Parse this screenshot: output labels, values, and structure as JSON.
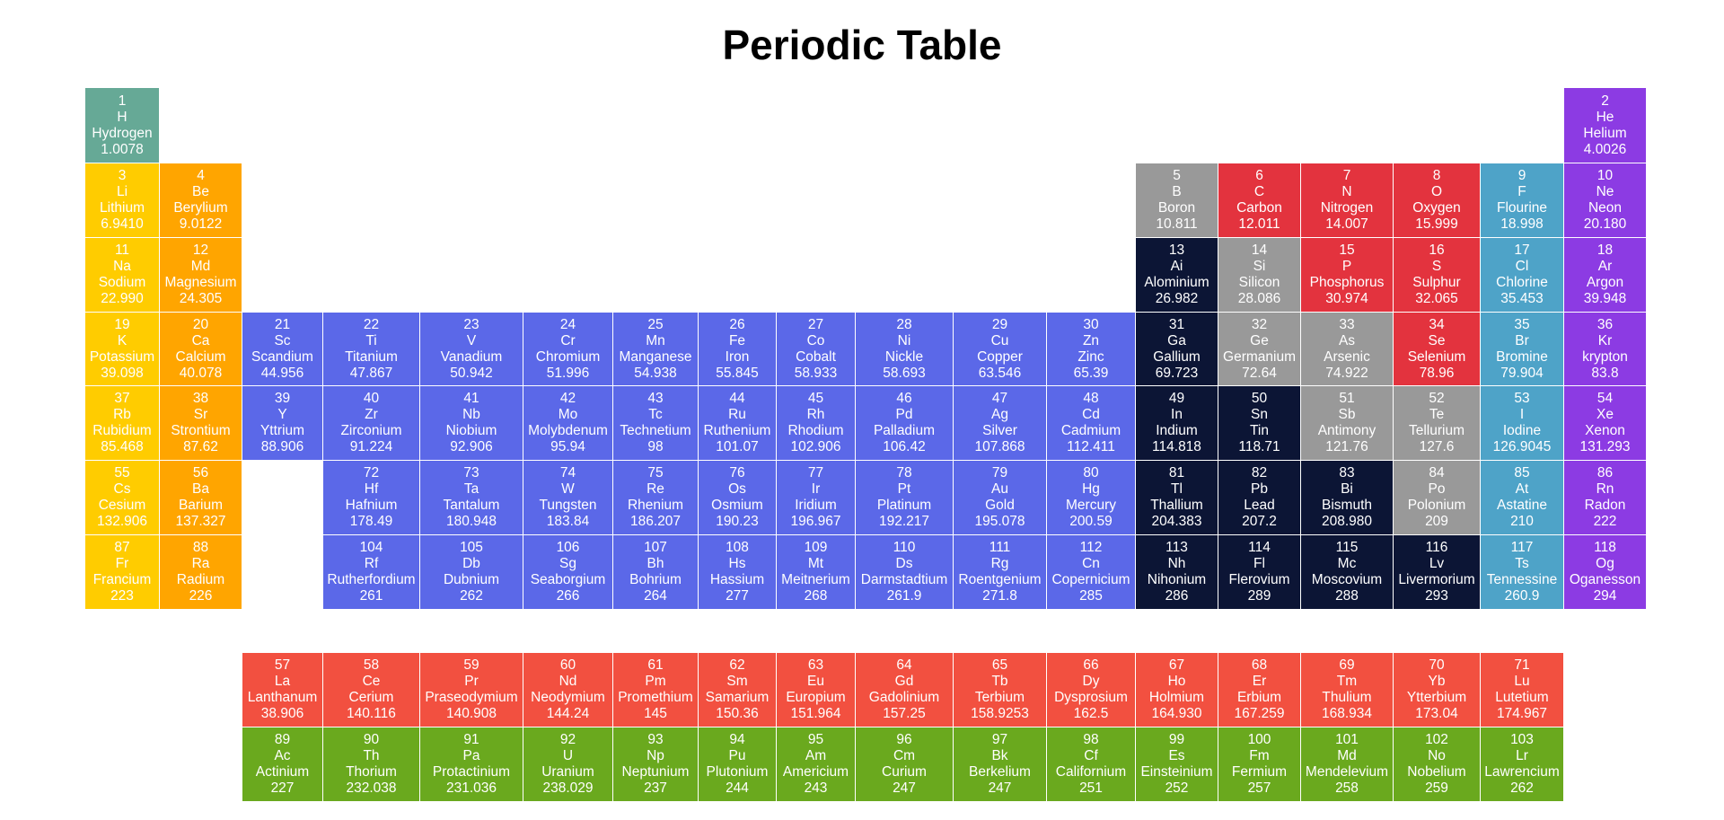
{
  "title": "Periodic Table",
  "colors": {
    "hydrogen": "#66a996",
    "alkali": "#ffcc00",
    "alkaline": "#ffa500",
    "transition": "#5b68e8",
    "metalloid": "#999999",
    "nonmetal": "#e3333e",
    "halogen": "#4ea3c8",
    "noble": "#8c3be3",
    "post": "#0c1535",
    "lanthanide": "#f25040",
    "actinide": "#6aa91e"
  },
  "elements": [
    {
      "n": "1",
      "s": "H",
      "name": "Hydrogen",
      "m": "1.0078",
      "c": "hydrogen",
      "r": 1,
      "col": 1
    },
    {
      "n": "2",
      "s": "He",
      "name": "Helium",
      "m": "4.0026",
      "c": "noble",
      "r": 1,
      "col": 18
    },
    {
      "n": "3",
      "s": "Li",
      "name": "Lithium",
      "m": "6.9410",
      "c": "alkali",
      "r": 2,
      "col": 1
    },
    {
      "n": "4",
      "s": "Be",
      "name": "Berylium",
      "m": "9.0122",
      "c": "alkaline",
      "r": 2,
      "col": 2
    },
    {
      "n": "5",
      "s": "B",
      "name": "Boron",
      "m": "10.811",
      "c": "metalloid",
      "r": 2,
      "col": 13
    },
    {
      "n": "6",
      "s": "C",
      "name": "Carbon",
      "m": "12.011",
      "c": "nonmetal",
      "r": 2,
      "col": 14
    },
    {
      "n": "7",
      "s": "N",
      "name": "Nitrogen",
      "m": "14.007",
      "c": "nonmetal",
      "r": 2,
      "col": 15
    },
    {
      "n": "8",
      "s": "O",
      "name": "Oxygen",
      "m": "15.999",
      "c": "nonmetal",
      "r": 2,
      "col": 16
    },
    {
      "n": "9",
      "s": "F",
      "name": "Flourine",
      "m": "18.998",
      "c": "halogen",
      "r": 2,
      "col": 17
    },
    {
      "n": "10",
      "s": "Ne",
      "name": "Neon",
      "m": "20.180",
      "c": "noble",
      "r": 2,
      "col": 18
    },
    {
      "n": "11",
      "s": "Na",
      "name": "Sodium",
      "m": "22.990",
      "c": "alkali",
      "r": 3,
      "col": 1
    },
    {
      "n": "12",
      "s": "Md",
      "name": "Magnesium",
      "m": "24.305",
      "c": "alkaline",
      "r": 3,
      "col": 2
    },
    {
      "n": "13",
      "s": "Ai",
      "name": "Alominium",
      "m": "26.982",
      "c": "post",
      "r": 3,
      "col": 13
    },
    {
      "n": "14",
      "s": "Si",
      "name": "Silicon",
      "m": "28.086",
      "c": "metalloid",
      "r": 3,
      "col": 14
    },
    {
      "n": "15",
      "s": "P",
      "name": "Phosphorus",
      "m": "30.974",
      "c": "nonmetal",
      "r": 3,
      "col": 15
    },
    {
      "n": "16",
      "s": "S",
      "name": "Sulphur",
      "m": "32.065",
      "c": "nonmetal",
      "r": 3,
      "col": 16
    },
    {
      "n": "17",
      "s": "Cl",
      "name": "Chlorine",
      "m": "35.453",
      "c": "halogen",
      "r": 3,
      "col": 17
    },
    {
      "n": "18",
      "s": "Ar",
      "name": "Argon",
      "m": "39.948",
      "c": "noble",
      "r": 3,
      "col": 18
    },
    {
      "n": "19",
      "s": "K",
      "name": "Potassium",
      "m": "39.098",
      "c": "alkali",
      "r": 4,
      "col": 1
    },
    {
      "n": "20",
      "s": "Ca",
      "name": "Calcium",
      "m": "40.078",
      "c": "alkaline",
      "r": 4,
      "col": 2
    },
    {
      "n": "21",
      "s": "Sc",
      "name": "Scandium",
      "m": "44.956",
      "c": "transition",
      "r": 4,
      "col": 3
    },
    {
      "n": "22",
      "s": "Ti",
      "name": "Titanium",
      "m": "47.867",
      "c": "transition",
      "r": 4,
      "col": 4
    },
    {
      "n": "23",
      "s": "V",
      "name": "Vanadium",
      "m": "50.942",
      "c": "transition",
      "r": 4,
      "col": 5
    },
    {
      "n": "24",
      "s": "Cr",
      "name": "Chromium",
      "m": "51.996",
      "c": "transition",
      "r": 4,
      "col": 6
    },
    {
      "n": "25",
      "s": "Mn",
      "name": "Manganese",
      "m": "54.938",
      "c": "transition",
      "r": 4,
      "col": 7
    },
    {
      "n": "26",
      "s": "Fe",
      "name": "Iron",
      "m": "55.845",
      "c": "transition",
      "r": 4,
      "col": 8
    },
    {
      "n": "27",
      "s": "Co",
      "name": "Cobalt",
      "m": "58.933",
      "c": "transition",
      "r": 4,
      "col": 9
    },
    {
      "n": "28",
      "s": "Ni",
      "name": "Nickle",
      "m": "58.693",
      "c": "transition",
      "r": 4,
      "col": 10
    },
    {
      "n": "29",
      "s": "Cu",
      "name": "Copper",
      "m": "63.546",
      "c": "transition",
      "r": 4,
      "col": 11
    },
    {
      "n": "30",
      "s": "Zn",
      "name": "Zinc",
      "m": "65.39",
      "c": "transition",
      "r": 4,
      "col": 12
    },
    {
      "n": "31",
      "s": "Ga",
      "name": "Gallium",
      "m": "69.723",
      "c": "post",
      "r": 4,
      "col": 13
    },
    {
      "n": "32",
      "s": "Ge",
      "name": "Germanium",
      "m": "72.64",
      "c": "metalloid",
      "r": 4,
      "col": 14
    },
    {
      "n": "33",
      "s": "As",
      "name": "Arsenic",
      "m": "74.922",
      "c": "metalloid",
      "r": 4,
      "col": 15
    },
    {
      "n": "34",
      "s": "Se",
      "name": "Selenium",
      "m": "78.96",
      "c": "nonmetal",
      "r": 4,
      "col": 16
    },
    {
      "n": "35",
      "s": "Br",
      "name": "Bromine",
      "m": "79.904",
      "c": "halogen",
      "r": 4,
      "col": 17
    },
    {
      "n": "36",
      "s": "Kr",
      "name": "krypton",
      "m": "83.8",
      "c": "noble",
      "r": 4,
      "col": 18
    },
    {
      "n": "37",
      "s": "Rb",
      "name": "Rubidium",
      "m": "85.468",
      "c": "alkali",
      "r": 5,
      "col": 1
    },
    {
      "n": "38",
      "s": "Sr",
      "name": "Strontium",
      "m": "87.62",
      "c": "alkaline",
      "r": 5,
      "col": 2
    },
    {
      "n": "39",
      "s": "Y",
      "name": "Yttrium",
      "m": "88.906",
      "c": "transition",
      "r": 5,
      "col": 3
    },
    {
      "n": "40",
      "s": "Zr",
      "name": "Zirconium",
      "m": "91.224",
      "c": "transition",
      "r": 5,
      "col": 4
    },
    {
      "n": "41",
      "s": "Nb",
      "name": "Niobium",
      "m": "92.906",
      "c": "transition",
      "r": 5,
      "col": 5
    },
    {
      "n": "42",
      "s": "Mo",
      "name": "Molybdenum",
      "m": "95.94",
      "c": "transition",
      "r": 5,
      "col": 6
    },
    {
      "n": "43",
      "s": "Tc",
      "name": "Technetium",
      "m": "98",
      "c": "transition",
      "r": 5,
      "col": 7
    },
    {
      "n": "44",
      "s": "Ru",
      "name": "Ruthenium",
      "m": "101.07",
      "c": "transition",
      "r": 5,
      "col": 8
    },
    {
      "n": "45",
      "s": "Rh",
      "name": "Rhodium",
      "m": "102.906",
      "c": "transition",
      "r": 5,
      "col": 9
    },
    {
      "n": "46",
      "s": "Pd",
      "name": "Palladium",
      "m": "106.42",
      "c": "transition",
      "r": 5,
      "col": 10
    },
    {
      "n": "47",
      "s": "Ag",
      "name": "Silver",
      "m": "107.868",
      "c": "transition",
      "r": 5,
      "col": 11
    },
    {
      "n": "48",
      "s": "Cd",
      "name": "Cadmium",
      "m": "112.411",
      "c": "transition",
      "r": 5,
      "col": 12
    },
    {
      "n": "49",
      "s": "In",
      "name": "Indium",
      "m": "114.818",
      "c": "post",
      "r": 5,
      "col": 13
    },
    {
      "n": "50",
      "s": "Sn",
      "name": "Tin",
      "m": "118.71",
      "c": "post",
      "r": 5,
      "col": 14
    },
    {
      "n": "51",
      "s": "Sb",
      "name": "Antimony",
      "m": "121.76",
      "c": "metalloid",
      "r": 5,
      "col": 15
    },
    {
      "n": "52",
      "s": "Te",
      "name": "Tellurium",
      "m": "127.6",
      "c": "metalloid",
      "r": 5,
      "col": 16
    },
    {
      "n": "53",
      "s": "I",
      "name": "Iodine",
      "m": "126.9045",
      "c": "halogen",
      "r": 5,
      "col": 17
    },
    {
      "n": "54",
      "s": "Xe",
      "name": "Xenon",
      "m": "131.293",
      "c": "noble",
      "r": 5,
      "col": 18
    },
    {
      "n": "55",
      "s": "Cs",
      "name": "Cesium",
      "m": "132.906",
      "c": "alkali",
      "r": 6,
      "col": 1
    },
    {
      "n": "56",
      "s": "Ba",
      "name": "Barium",
      "m": "137.327",
      "c": "alkaline",
      "r": 6,
      "col": 2
    },
    {
      "n": "72",
      "s": "Hf",
      "name": "Hafnium",
      "m": "178.49",
      "c": "transition",
      "r": 6,
      "col": 4
    },
    {
      "n": "73",
      "s": "Ta",
      "name": "Tantalum",
      "m": "180.948",
      "c": "transition",
      "r": 6,
      "col": 5
    },
    {
      "n": "74",
      "s": "W",
      "name": "Tungsten",
      "m": "183.84",
      "c": "transition",
      "r": 6,
      "col": 6
    },
    {
      "n": "75",
      "s": "Re",
      "name": "Rhenium",
      "m": "186.207",
      "c": "transition",
      "r": 6,
      "col": 7
    },
    {
      "n": "76",
      "s": "Os",
      "name": "Osmium",
      "m": "190.23",
      "c": "transition",
      "r": 6,
      "col": 8
    },
    {
      "n": "77",
      "s": "Ir",
      "name": "Iridium",
      "m": "196.967",
      "c": "transition",
      "r": 6,
      "col": 9
    },
    {
      "n": "78",
      "s": "Pt",
      "name": "Platinum",
      "m": "192.217",
      "c": "transition",
      "r": 6,
      "col": 10
    },
    {
      "n": "79",
      "s": "Au",
      "name": "Gold",
      "m": "195.078",
      "c": "transition",
      "r": 6,
      "col": 11
    },
    {
      "n": "80",
      "s": "Hg",
      "name": "Mercury",
      "m": "200.59",
      "c": "transition",
      "r": 6,
      "col": 12
    },
    {
      "n": "81",
      "s": "Tl",
      "name": "Thallium",
      "m": "204.383",
      "c": "post",
      "r": 6,
      "col": 13
    },
    {
      "n": "82",
      "s": "Pb",
      "name": "Lead",
      "m": "207.2",
      "c": "post",
      "r": 6,
      "col": 14
    },
    {
      "n": "83",
      "s": "Bi",
      "name": "Bismuth",
      "m": "208.980",
      "c": "post",
      "r": 6,
      "col": 15
    },
    {
      "n": "84",
      "s": "Po",
      "name": "Polonium",
      "m": "209",
      "c": "metalloid",
      "r": 6,
      "col": 16
    },
    {
      "n": "85",
      "s": "At",
      "name": "Astatine",
      "m": "210",
      "c": "halogen",
      "r": 6,
      "col": 17
    },
    {
      "n": "86",
      "s": "Rn",
      "name": "Radon",
      "m": "222",
      "c": "noble",
      "r": 6,
      "col": 18
    },
    {
      "n": "87",
      "s": "Fr",
      "name": "Francium",
      "m": "223",
      "c": "alkali",
      "r": 7,
      "col": 1
    },
    {
      "n": "88",
      "s": "Ra",
      "name": "Radium",
      "m": "226",
      "c": "alkaline",
      "r": 7,
      "col": 2
    },
    {
      "n": "104",
      "s": "Rf",
      "name": "Rutherfordium",
      "m": "261",
      "c": "transition",
      "r": 7,
      "col": 4
    },
    {
      "n": "105",
      "s": "Db",
      "name": "Dubnium",
      "m": "262",
      "c": "transition",
      "r": 7,
      "col": 5
    },
    {
      "n": "106",
      "s": "Sg",
      "name": "Seaborgium",
      "m": "266",
      "c": "transition",
      "r": 7,
      "col": 6
    },
    {
      "n": "107",
      "s": "Bh",
      "name": "Bohrium",
      "m": "264",
      "c": "transition",
      "r": 7,
      "col": 7
    },
    {
      "n": "108",
      "s": "Hs",
      "name": "Hassium",
      "m": "277",
      "c": "transition",
      "r": 7,
      "col": 8
    },
    {
      "n": "109",
      "s": "Mt",
      "name": "Meitnerium",
      "m": "268",
      "c": "transition",
      "r": 7,
      "col": 9
    },
    {
      "n": "110",
      "s": "Ds",
      "name": "Darmstadtium",
      "m": "261.9",
      "c": "transition",
      "r": 7,
      "col": 10
    },
    {
      "n": "111",
      "s": "Rg",
      "name": "Roentgenium",
      "m": "271.8",
      "c": "transition",
      "r": 7,
      "col": 11
    },
    {
      "n": "112",
      "s": "Cn",
      "name": "Copernicium",
      "m": "285",
      "c": "transition",
      "r": 7,
      "col": 12
    },
    {
      "n": "113",
      "s": "Nh",
      "name": "Nihonium",
      "m": "286",
      "c": "post",
      "r": 7,
      "col": 13
    },
    {
      "n": "114",
      "s": "Fl",
      "name": "Flerovium",
      "m": "289",
      "c": "post",
      "r": 7,
      "col": 14
    },
    {
      "n": "115",
      "s": "Mc",
      "name": "Moscovium",
      "m": "288",
      "c": "post",
      "r": 7,
      "col": 15
    },
    {
      "n": "116",
      "s": "Lv",
      "name": "Livermorium",
      "m": "293",
      "c": "post",
      "r": 7,
      "col": 16
    },
    {
      "n": "117",
      "s": "Ts",
      "name": "Tennessine",
      "m": "260.9",
      "c": "halogen",
      "r": 7,
      "col": 17
    },
    {
      "n": "118",
      "s": "Og",
      "name": "Oganesson",
      "m": "294",
      "c": "noble",
      "r": 7,
      "col": 18
    },
    {
      "n": "57",
      "s": "La",
      "name": "Lanthanum",
      "m": "38.906",
      "c": "lanthanide",
      "r": 9,
      "col": 3
    },
    {
      "n": "58",
      "s": "Ce",
      "name": "Cerium",
      "m": "140.116",
      "c": "lanthanide",
      "r": 9,
      "col": 4
    },
    {
      "n": "59",
      "s": "Pr",
      "name": "Praseodymium",
      "m": "140.908",
      "c": "lanthanide",
      "r": 9,
      "col": 5
    },
    {
      "n": "60",
      "s": "Nd",
      "name": "Neodymium",
      "m": "144.24",
      "c": "lanthanide",
      "r": 9,
      "col": 6
    },
    {
      "n": "61",
      "s": "Pm",
      "name": "Promethium",
      "m": "145",
      "c": "lanthanide",
      "r": 9,
      "col": 7
    },
    {
      "n": "62",
      "s": "Sm",
      "name": "Samarium",
      "m": "150.36",
      "c": "lanthanide",
      "r": 9,
      "col": 8
    },
    {
      "n": "63",
      "s": "Eu",
      "name": "Europium",
      "m": "151.964",
      "c": "lanthanide",
      "r": 9,
      "col": 9
    },
    {
      "n": "64",
      "s": "Gd",
      "name": "Gadolinium",
      "m": "157.25",
      "c": "lanthanide",
      "r": 9,
      "col": 10
    },
    {
      "n": "65",
      "s": "Tb",
      "name": "Terbium",
      "m": "158.9253",
      "c": "lanthanide",
      "r": 9,
      "col": 11
    },
    {
      "n": "66",
      "s": "Dy",
      "name": "Dysprosium",
      "m": "162.5",
      "c": "lanthanide",
      "r": 9,
      "col": 12
    },
    {
      "n": "67",
      "s": "Ho",
      "name": "Holmium",
      "m": "164.930",
      "c": "lanthanide",
      "r": 9,
      "col": 13
    },
    {
      "n": "68",
      "s": "Er",
      "name": "Erbium",
      "m": "167.259",
      "c": "lanthanide",
      "r": 9,
      "col": 14
    },
    {
      "n": "69",
      "s": "Tm",
      "name": "Thulium",
      "m": "168.934",
      "c": "lanthanide",
      "r": 9,
      "col": 15
    },
    {
      "n": "70",
      "s": "Yb",
      "name": "Ytterbium",
      "m": "173.04",
      "c": "lanthanide",
      "r": 9,
      "col": 16
    },
    {
      "n": "71",
      "s": "Lu",
      "name": "Lutetium",
      "m": "174.967",
      "c": "lanthanide",
      "r": 9,
      "col": 17
    },
    {
      "n": "89",
      "s": "Ac",
      "name": "Actinium",
      "m": "227",
      "c": "actinide",
      "r": 10,
      "col": 3
    },
    {
      "n": "90",
      "s": "Th",
      "name": "Thorium",
      "m": "232.038",
      "c": "actinide",
      "r": 10,
      "col": 4
    },
    {
      "n": "91",
      "s": "Pa",
      "name": "Protactinium",
      "m": "231.036",
      "c": "actinide",
      "r": 10,
      "col": 5
    },
    {
      "n": "92",
      "s": "U",
      "name": "Uranium",
      "m": "238.029",
      "c": "actinide",
      "r": 10,
      "col": 6
    },
    {
      "n": "93",
      "s": "Np",
      "name": "Neptunium",
      "m": "237",
      "c": "actinide",
      "r": 10,
      "col": 7
    },
    {
      "n": "94",
      "s": "Pu",
      "name": "Plutonium",
      "m": "244",
      "c": "actinide",
      "r": 10,
      "col": 8
    },
    {
      "n": "95",
      "s": "Am",
      "name": "Americium",
      "m": "243",
      "c": "actinide",
      "r": 10,
      "col": 9
    },
    {
      "n": "96",
      "s": "Cm",
      "name": "Curium",
      "m": "247",
      "c": "actinide",
      "r": 10,
      "col": 10
    },
    {
      "n": "97",
      "s": "Bk",
      "name": "Berkelium",
      "m": "247",
      "c": "actinide",
      "r": 10,
      "col": 11
    },
    {
      "n": "98",
      "s": "Cf",
      "name": "Californium",
      "m": "251",
      "c": "actinide",
      "r": 10,
      "col": 12
    },
    {
      "n": "99",
      "s": "Es",
      "name": "Einsteinium",
      "m": "252",
      "c": "actinide",
      "r": 10,
      "col": 13
    },
    {
      "n": "100",
      "s": "Fm",
      "name": "Fermium",
      "m": "257",
      "c": "actinide",
      "r": 10,
      "col": 14
    },
    {
      "n": "101",
      "s": "Md",
      "name": "Mendelevium",
      "m": "258",
      "c": "actinide",
      "r": 10,
      "col": 15
    },
    {
      "n": "102",
      "s": "No",
      "name": "Nobelium",
      "m": "259",
      "c": "actinide",
      "r": 10,
      "col": 16
    },
    {
      "n": "103",
      "s": "Lr",
      "name": "Lawrencium",
      "m": "262",
      "c": "actinide",
      "r": 10,
      "col": 17
    }
  ]
}
